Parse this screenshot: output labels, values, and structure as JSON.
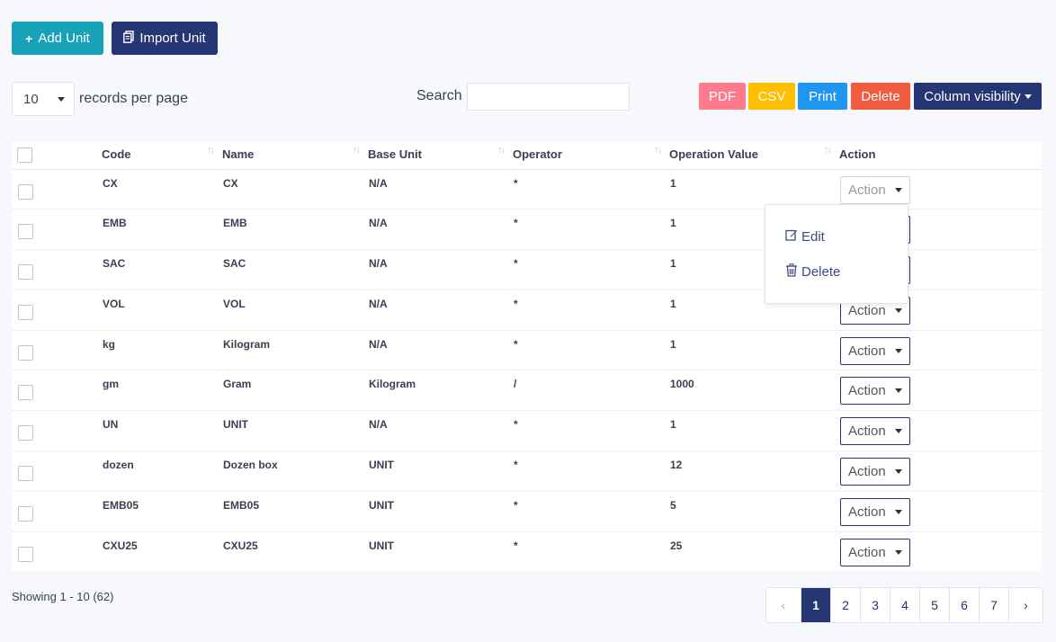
{
  "toolbar": {
    "add_label": "Add Unit",
    "import_label": "Import Unit"
  },
  "length_menu": {
    "value": "10",
    "label": "records per page"
  },
  "search": {
    "label": "Search",
    "value": ""
  },
  "exports": {
    "pdf": "PDF",
    "csv": "CSV",
    "print": "Print",
    "delete": "Delete",
    "column_visibility": "Column visibility"
  },
  "colors": {
    "primary": "#263574",
    "info": "#17a2b8",
    "pdf": "#ff7b8c",
    "csv": "#ffbf00",
    "print": "#1f97f0",
    "danger": "#f15b40"
  },
  "table": {
    "columns": [
      "Code",
      "Name",
      "Base Unit",
      "Operator",
      "Operation Value",
      "Action"
    ],
    "action_label": "Action",
    "rows": [
      {
        "code": "CX",
        "name": "CX",
        "base": "N/A",
        "op": "*",
        "value": "1"
      },
      {
        "code": "EMB",
        "name": "EMB",
        "base": "N/A",
        "op": "*",
        "value": "1"
      },
      {
        "code": "SAC",
        "name": "SAC",
        "base": "N/A",
        "op": "*",
        "value": "1"
      },
      {
        "code": "VOL",
        "name": "VOL",
        "base": "N/A",
        "op": "*",
        "value": "1"
      },
      {
        "code": "kg",
        "name": "Kilogram",
        "base": "N/A",
        "op": "*",
        "value": "1"
      },
      {
        "code": "gm",
        "name": "Gram",
        "base": "Kilogram",
        "op": "/",
        "value": "1000"
      },
      {
        "code": "UN",
        "name": "UNIT",
        "base": "N/A",
        "op": "*",
        "value": "1"
      },
      {
        "code": "dozen",
        "name": "Dozen box",
        "base": "UNIT",
        "op": "*",
        "value": "12"
      },
      {
        "code": "EMB05",
        "name": "EMB05",
        "base": "UNIT",
        "op": "*",
        "value": "5"
      },
      {
        "code": "CXU25",
        "name": "CXU25",
        "base": "UNIT",
        "op": "*",
        "value": "25"
      }
    ]
  },
  "dropdown": {
    "edit": "Edit",
    "delete": "Delete"
  },
  "footer": {
    "showing": "Showing 1 - 10 (62)",
    "pages": [
      "1",
      "2",
      "3",
      "4",
      "5",
      "6",
      "7"
    ],
    "prev": "‹",
    "next": "›"
  }
}
